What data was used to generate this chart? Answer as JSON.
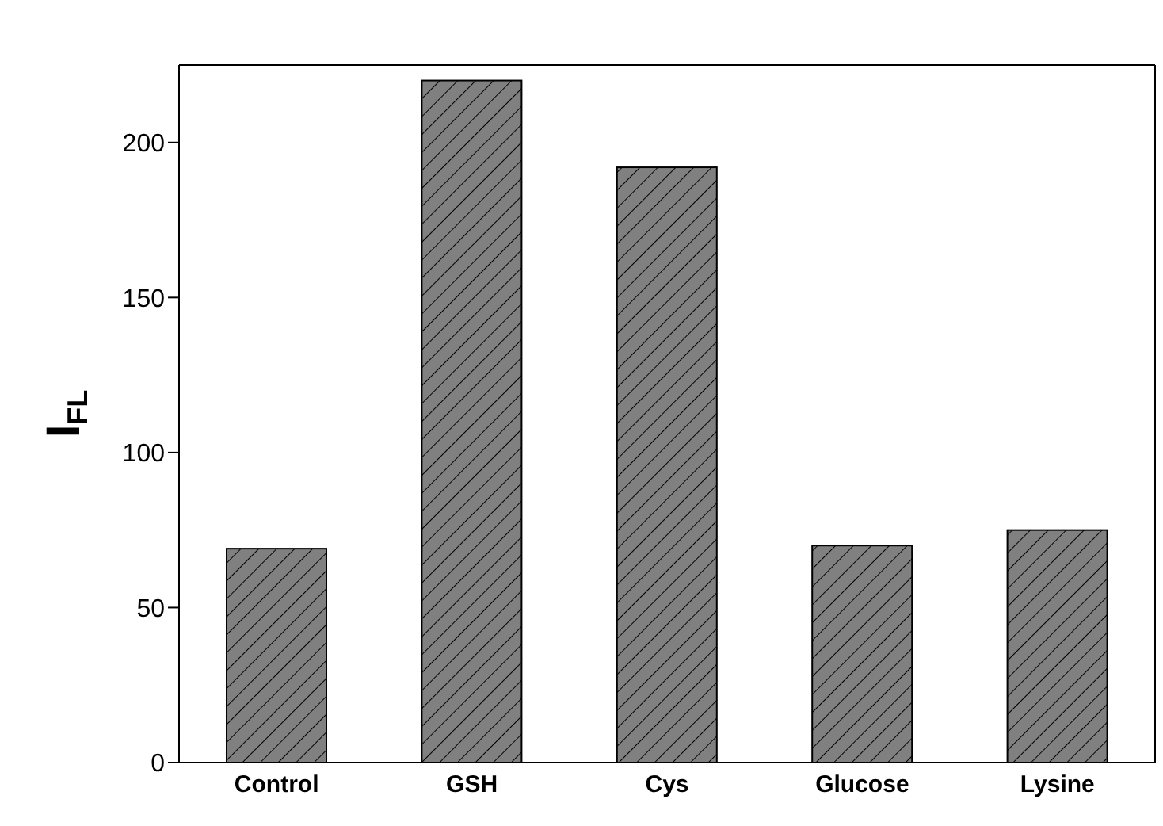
{
  "chart_data": {
    "type": "bar",
    "ylabel": "I$_{FL}$",
    "categories": [
      "Control",
      "GSH",
      "Cys",
      "Glucose",
      "Lysine"
    ],
    "values": [
      69,
      220,
      192,
      70,
      75
    ],
    "color": "#808080",
    "ylim": [
      0,
      225
    ],
    "yticks": [
      0,
      50,
      100,
      150,
      200
    ]
  }
}
